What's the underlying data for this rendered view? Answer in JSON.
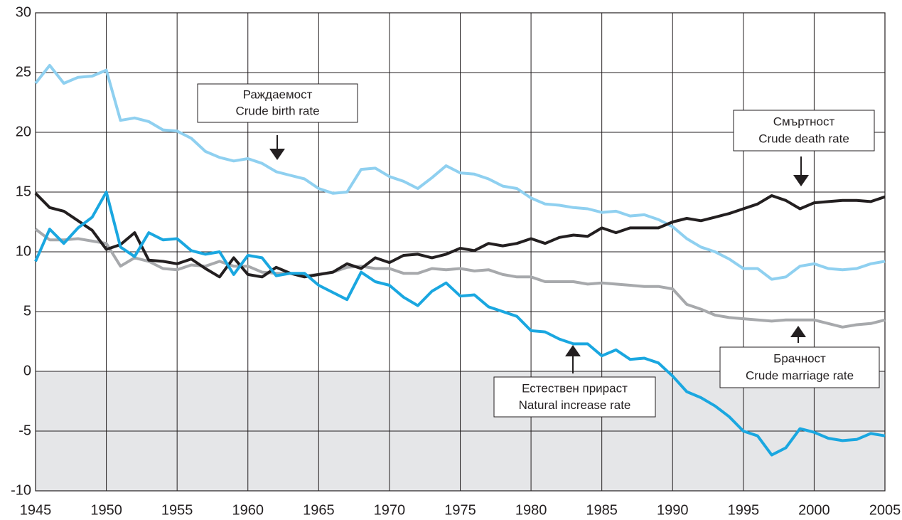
{
  "chart_data": {
    "type": "line",
    "x": [
      1945,
      1946,
      1947,
      1948,
      1949,
      1950,
      1951,
      1952,
      1953,
      1954,
      1955,
      1956,
      1957,
      1958,
      1959,
      1960,
      1961,
      1962,
      1963,
      1964,
      1965,
      1966,
      1967,
      1968,
      1969,
      1970,
      1971,
      1972,
      1973,
      1974,
      1975,
      1976,
      1977,
      1978,
      1979,
      1980,
      1981,
      1982,
      1983,
      1984,
      1985,
      1986,
      1987,
      1988,
      1989,
      1990,
      1991,
      1992,
      1993,
      1994,
      1995,
      1996,
      1997,
      1998,
      1999,
      2000,
      2001,
      2002,
      2003,
      2004,
      2005
    ],
    "series": [
      {
        "name": "Брачност",
        "name_en": "Crude marriage rate",
        "color": "#a7a9ac",
        "values": [
          11.9,
          11.0,
          11.0,
          11.1,
          10.9,
          10.7,
          8.8,
          9.5,
          9.2,
          8.6,
          8.5,
          8.9,
          8.8,
          9.2,
          8.8,
          8.8,
          8.3,
          8.2,
          8.2,
          8.0,
          8.1,
          8.3,
          8.7,
          8.8,
          8.6,
          8.6,
          8.2,
          8.2,
          8.6,
          8.5,
          8.6,
          8.4,
          8.5,
          8.1,
          7.9,
          7.9,
          7.5,
          7.5,
          7.5,
          7.3,
          7.4,
          7.3,
          7.2,
          7.1,
          7.1,
          6.9,
          5.6,
          5.2,
          4.7,
          4.5,
          4.4,
          4.3,
          4.2,
          4.3,
          4.3,
          4.3,
          4.0,
          3.7,
          3.9,
          4.0,
          4.3
        ]
      },
      {
        "name": "Раждаемост",
        "name_en": "Crude birth rate",
        "color": "#8fd0f0",
        "values": [
          24.1,
          25.6,
          24.1,
          24.6,
          24.7,
          25.2,
          21.0,
          21.2,
          20.9,
          20.2,
          20.1,
          19.5,
          18.4,
          17.9,
          17.6,
          17.8,
          17.4,
          16.7,
          16.4,
          16.1,
          15.3,
          14.9,
          15.0,
          16.9,
          17.0,
          16.3,
          15.9,
          15.3,
          16.2,
          17.2,
          16.6,
          16.5,
          16.1,
          15.5,
          15.3,
          14.5,
          14.0,
          13.9,
          13.7,
          13.6,
          13.3,
          13.4,
          13.0,
          13.1,
          12.7,
          12.1,
          11.1,
          10.4,
          10.0,
          9.4,
          8.6,
          8.6,
          7.7,
          7.9,
          8.8,
          9.0,
          8.6,
          8.5,
          8.6,
          9.0,
          9.2
        ]
      },
      {
        "name": "Смъртност",
        "name_en": "Crude death rate",
        "color": "#231f20",
        "values": [
          14.9,
          13.7,
          13.4,
          12.6,
          11.8,
          10.2,
          10.6,
          11.6,
          9.3,
          9.2,
          9.0,
          9.4,
          8.6,
          7.9,
          9.5,
          8.1,
          7.9,
          8.7,
          8.2,
          7.9,
          8.1,
          8.3,
          9.0,
          8.6,
          9.5,
          9.1,
          9.7,
          9.8,
          9.5,
          9.8,
          10.3,
          10.1,
          10.7,
          10.5,
          10.7,
          11.1,
          10.7,
          11.2,
          11.4,
          11.3,
          12.0,
          11.6,
          12.0,
          12.0,
          12.0,
          12.5,
          12.8,
          12.6,
          12.9,
          13.2,
          13.6,
          14.0,
          14.7,
          14.3,
          13.6,
          14.1,
          14.2,
          14.3,
          14.3,
          14.2,
          14.6
        ]
      },
      {
        "name": "Естествен прираст",
        "name_en": "Natural increase rate",
        "color": "#1aa7e0",
        "values": [
          9.2,
          11.9,
          10.7,
          12.0,
          12.9,
          15.0,
          10.4,
          9.6,
          11.6,
          11.0,
          11.1,
          10.1,
          9.8,
          10.0,
          8.1,
          9.7,
          9.5,
          8.0,
          8.2,
          8.2,
          7.2,
          6.6,
          6.0,
          8.3,
          7.5,
          7.2,
          6.2,
          5.5,
          6.7,
          7.4,
          6.3,
          6.4,
          5.4,
          5.0,
          4.6,
          3.4,
          3.3,
          2.7,
          2.3,
          2.3,
          1.3,
          1.8,
          1.0,
          1.1,
          0.7,
          -0.4,
          -1.7,
          -2.2,
          -2.9,
          -3.8,
          -5.0,
          -5.4,
          -7.0,
          -6.4,
          -4.8,
          -5.1,
          -5.6,
          -5.8,
          -5.7,
          -5.2,
          -5.4
        ]
      }
    ],
    "xlim": [
      1945,
      2005
    ],
    "xticks": [
      1945,
      1950,
      1955,
      1960,
      1965,
      1970,
      1975,
      1980,
      1985,
      1990,
      1995,
      2000,
      2005
    ],
    "ylim": [
      -10,
      30
    ],
    "yticks": [
      -10,
      -5,
      0,
      5,
      10,
      15,
      20,
      25,
      30
    ],
    "grid": true,
    "negative_shade": "#e5e6e8"
  }
}
